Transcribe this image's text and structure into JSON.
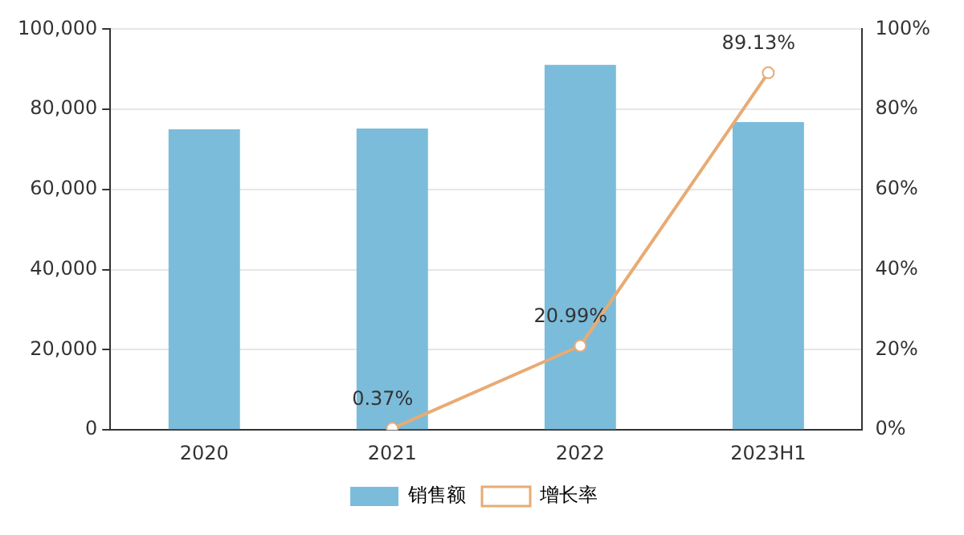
{
  "chart_data": {
    "type": "bar",
    "categories": [
      "2020",
      "2021",
      "2022",
      "2023H1"
    ],
    "series": [
      {
        "name": "销售额",
        "color": "#7bbcdb",
        "values": [
          75000,
          75200,
          91100,
          76800
        ]
      },
      {
        "name": "增长率",
        "type": "line",
        "axis": "y2",
        "color": "#e8ab74",
        "values": [
          null,
          0.37,
          20.99,
          89.13
        ],
        "value_labels": [
          null,
          "0.37%",
          "20.99%",
          "89.13%"
        ]
      }
    ],
    "ylim": [
      0,
      100000
    ],
    "yticks": [
      {
        "value": 0,
        "label": "0"
      },
      {
        "value": 20000,
        "label": "20,000"
      },
      {
        "value": 40000,
        "label": "40,000"
      },
      {
        "value": 60000,
        "label": "60,000"
      },
      {
        "value": 80000,
        "label": "80,000"
      },
      {
        "value": 100000,
        "label": "100,000"
      }
    ],
    "y2lim": [
      0,
      100
    ],
    "y2ticks": [
      {
        "value": 0,
        "label": "0%"
      },
      {
        "value": 20,
        "label": "20%"
      },
      {
        "value": 40,
        "label": "40%"
      },
      {
        "value": 60,
        "label": "60%"
      },
      {
        "value": 80,
        "label": "80%"
      },
      {
        "value": 100,
        "label": "100%"
      }
    ],
    "grid": "y",
    "legend": "bottom",
    "marker": "circle",
    "line_style": "solid"
  }
}
